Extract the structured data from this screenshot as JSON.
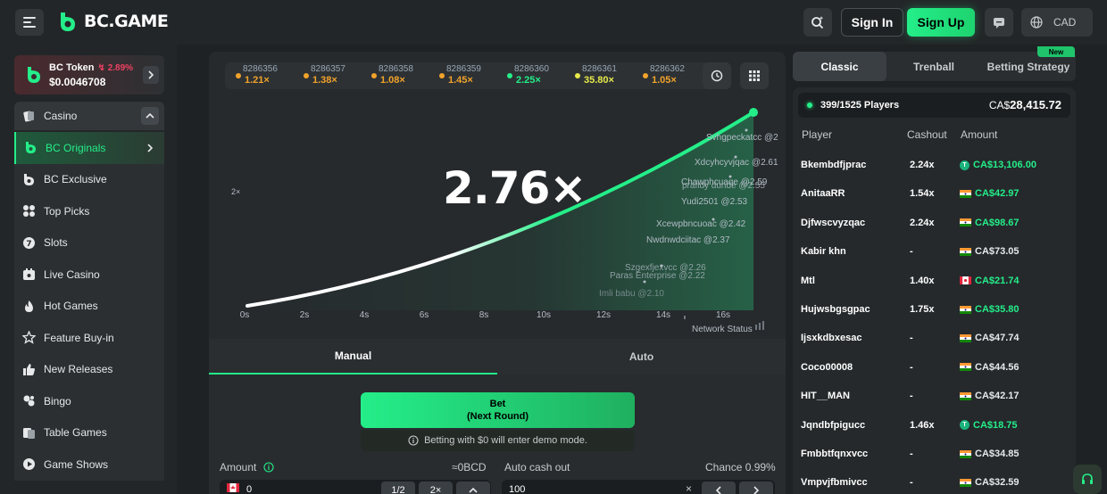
{
  "header": {
    "logo_text": "BC.GAME",
    "signin_label": "Sign In",
    "signup_label": "Sign Up",
    "currency": "CAD"
  },
  "token": {
    "name": "BC Token",
    "change": "2.89%",
    "price": "$0.0046708"
  },
  "sidebar": {
    "items": [
      {
        "label": "Casino",
        "icon": "casino-icon"
      },
      {
        "label": "BC Originals",
        "icon": "bc-originals-icon"
      },
      {
        "label": "BC Exclusive",
        "icon": "bc-exclusive-icon"
      },
      {
        "label": "Top Picks",
        "icon": "top-picks-icon"
      },
      {
        "label": "Slots",
        "icon": "slots-icon"
      },
      {
        "label": "Live Casino",
        "icon": "live-casino-icon"
      },
      {
        "label": "Hot Games",
        "icon": "flame-icon"
      },
      {
        "label": "Feature Buy-in",
        "icon": "star-icon"
      },
      {
        "label": "New Releases",
        "icon": "thumbs-up-icon"
      },
      {
        "label": "Bingo",
        "icon": "bingo-icon"
      },
      {
        "label": "Table Games",
        "icon": "table-games-icon"
      },
      {
        "label": "Game Shows",
        "icon": "game-shows-icon"
      }
    ]
  },
  "history": [
    {
      "id": "8286356",
      "value": "1.21×",
      "color": "#f2a32a"
    },
    {
      "id": "8286357",
      "value": "1.38×",
      "color": "#f2a32a"
    },
    {
      "id": "8286358",
      "value": "1.08×",
      "color": "#f2a32a"
    },
    {
      "id": "8286359",
      "value": "1.45×",
      "color": "#f2a32a"
    },
    {
      "id": "8286360",
      "value": "2.25×",
      "color": "#24ee89"
    },
    {
      "id": "8286361",
      "value": "35.80×",
      "color": "#e6e94a"
    },
    {
      "id": "8286362",
      "value": "1.05×",
      "color": "#f2a32a"
    }
  ],
  "game": {
    "multiplier": "2.76×",
    "y_tick": "2×",
    "x_ticks": [
      "0s",
      "2s",
      "4s",
      "6s",
      "8s",
      "10s",
      "12s",
      "14s",
      "16s"
    ],
    "network_status": "Network Status",
    "cashout_labels": [
      "Svhgpeckatcc @2",
      "Xdcyhcyvjqac @2.61",
      "Chawphcuaqe @2.59",
      "prafidy dunde @2.55",
      "Yudi2501 @2.53",
      "Xcewpbncuoac @2.42",
      "Nwdnwdciitac @2.37",
      "Szgexfjexvcc @2.26",
      "Paras Enterprise @2.22",
      "Imli babu @2.10"
    ]
  },
  "bet": {
    "tab_manual": "Manual",
    "tab_auto": "Auto",
    "bet_label": "Bet",
    "bet_sub": "(Next Round)",
    "demo_note": "Betting with $0 will enter demo mode.",
    "amount_label": "Amount",
    "amount_value": "0",
    "amount_bcd": "≈0BCD",
    "half_label": "1/2",
    "double_label": "2×",
    "auto_cashout_label": "Auto cash out",
    "auto_cashout_value": "100",
    "chance_label": "Chance 0.99%"
  },
  "right": {
    "tabs": [
      "Classic",
      "Trenball",
      "Betting Strategy"
    ],
    "new_badge": "New",
    "players_count": "399/1525 Players",
    "total_prefix": "CA$",
    "total_value": "28,415.72",
    "col_player": "Player",
    "col_cashout": "Cashout",
    "col_amount": "Amount",
    "rows": [
      {
        "name": "Bkembdfjprac",
        "cashout": "2.24x",
        "amount": "CA$13,106.00",
        "icon": "coin",
        "won": true
      },
      {
        "name": "AnitaaRR",
        "cashout": "1.54x",
        "amount": "CA$42.97",
        "icon": "india-flag",
        "won": true
      },
      {
        "name": "Djfwscvyzqac",
        "cashout": "2.24x",
        "amount": "CA$98.67",
        "icon": "india-flag",
        "won": true
      },
      {
        "name": "Kabir khn",
        "cashout": "-",
        "amount": "CA$73.05",
        "icon": "india-flag",
        "won": false
      },
      {
        "name": "Mtl",
        "cashout": "1.40x",
        "amount": "CA$21.74",
        "icon": "canada-flag",
        "won": true
      },
      {
        "name": "Hujwsbgsgpac",
        "cashout": "1.75x",
        "amount": "CA$35.80",
        "icon": "india-flag",
        "won": true
      },
      {
        "name": "Ijsxkdbxesac",
        "cashout": "-",
        "amount": "CA$47.74",
        "icon": "india-flag",
        "won": false
      },
      {
        "name": "Coco00008",
        "cashout": "-",
        "amount": "CA$44.56",
        "icon": "india-flag",
        "won": false
      },
      {
        "name": "HIT__MAN",
        "cashout": "-",
        "amount": "CA$42.17",
        "icon": "india-flag",
        "won": false
      },
      {
        "name": "Jqndbfpigucc",
        "cashout": "1.46x",
        "amount": "CA$18.75",
        "icon": "coin",
        "won": true
      },
      {
        "name": "Fmbbtfqnxvcc",
        "cashout": "-",
        "amount": "CA$34.85",
        "icon": "india-flag",
        "won": false
      },
      {
        "name": "Vmpvjfbmivcc",
        "cashout": "-",
        "amount": "CA$32.59",
        "icon": "india-flag",
        "won": false
      }
    ]
  },
  "colors": {
    "accent": "#24ee89",
    "loss": "#ed4163",
    "background": "#1f2224"
  }
}
